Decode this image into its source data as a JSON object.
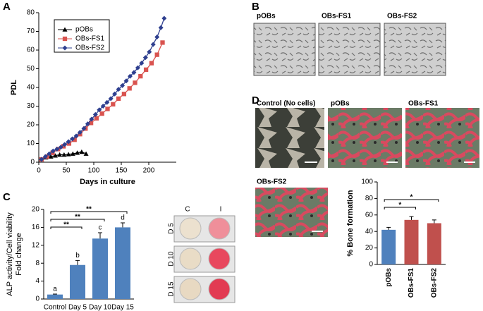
{
  "panels": {
    "a": "A",
    "b": "B",
    "c": "C",
    "d": "D"
  },
  "panel_b_images": [
    "pOBs",
    "OBs-FS1",
    "OBs-FS2"
  ],
  "panel_d_images": [
    "Control (No cells)",
    "pOBs",
    "OBs-FS1",
    "OBs-FS2"
  ],
  "plate": {
    "columns": [
      "C",
      "I"
    ],
    "rows": [
      "D 5",
      "D 10",
      "D 15"
    ]
  },
  "chart_data": [
    {
      "type": "line",
      "xlabel": "Days in culture",
      "ylabel": [
        "PDL"
      ],
      "xlim": [
        0,
        250
      ],
      "xticks": [
        0,
        50,
        100,
        150,
        200
      ],
      "ylim": [
        0,
        80
      ],
      "yticks": [
        0,
        10,
        20,
        30,
        40,
        50,
        60,
        70,
        80
      ],
      "legend": "upper left",
      "series": [
        {
          "name": "pOBs",
          "color": "#000000",
          "marker": "triangle",
          "x": [
            5,
            13,
            22,
            30,
            38,
            46,
            54,
            62,
            70,
            78,
            86
          ],
          "values": [
            1.5,
            2.5,
            3,
            3.5,
            4,
            4,
            4.2,
            4.5,
            5,
            5.5,
            4.5
          ]
        },
        {
          "name": "OBs-FS1",
          "color": "#d9534f",
          "marker": "square",
          "x": [
            5,
            15,
            25,
            35,
            45,
            55,
            65,
            75,
            85,
            95,
            105,
            115,
            125,
            135,
            145,
            155,
            165,
            175,
            185,
            195,
            205,
            215,
            225
          ],
          "values": [
            1.5,
            3,
            5,
            7,
            8.5,
            10,
            12,
            15,
            18,
            21,
            23.5,
            26,
            28.5,
            31,
            34,
            36.5,
            39.5,
            42.5,
            46,
            49.5,
            53,
            57.5,
            64
          ]
        },
        {
          "name": "OBs-FS2",
          "color": "#2e3f8f",
          "marker": "diamond",
          "x": [
            5,
            12,
            19,
            26,
            33,
            40,
            47,
            54,
            61,
            68,
            75,
            82,
            89,
            96,
            103,
            110,
            117,
            124,
            131,
            138,
            145,
            152,
            159,
            166,
            173,
            180,
            187,
            194,
            201,
            208,
            215,
            222,
            228
          ],
          "values": [
            1.5,
            3,
            4.5,
            6,
            7,
            8,
            9.5,
            11,
            12.5,
            14,
            16,
            18,
            20.5,
            23,
            25.5,
            28,
            30,
            32,
            34,
            36.5,
            39,
            41,
            43.5,
            46,
            48,
            50.5,
            53,
            56,
            59,
            63,
            67,
            72,
            77
          ]
        }
      ]
    },
    {
      "type": "bar",
      "ylabel": [
        "ALP activity/Cell viability",
        "Fold change"
      ],
      "categories": [
        "Control",
        "Day 5",
        "Day 10",
        "Day 15"
      ],
      "values": [
        1,
        7.6,
        13.5,
        16
      ],
      "errors": [
        0.1,
        1,
        1.3,
        1
      ],
      "color": "#4f81bd",
      "letters": [
        "a",
        "b",
        "c",
        "d"
      ],
      "significance": [
        "**",
        "**",
        "**"
      ],
      "ylim": [
        0,
        20
      ],
      "yticks": [
        0,
        4,
        8,
        12,
        16,
        20
      ]
    },
    {
      "type": "bar",
      "ylabel": [
        "% Bone formation"
      ],
      "categories": [
        "pOBs",
        "OBs-FS1",
        "OBs-FS2"
      ],
      "values": [
        42,
        54,
        50
      ],
      "errors": [
        3,
        4,
        4
      ],
      "colors": [
        "#4f81bd",
        "#c0504d",
        "#c0504d"
      ],
      "significance": [
        "*",
        "*"
      ],
      "ylim": [
        0,
        100
      ],
      "yticks": [
        0,
        20,
        40,
        60,
        80,
        100
      ]
    }
  ]
}
